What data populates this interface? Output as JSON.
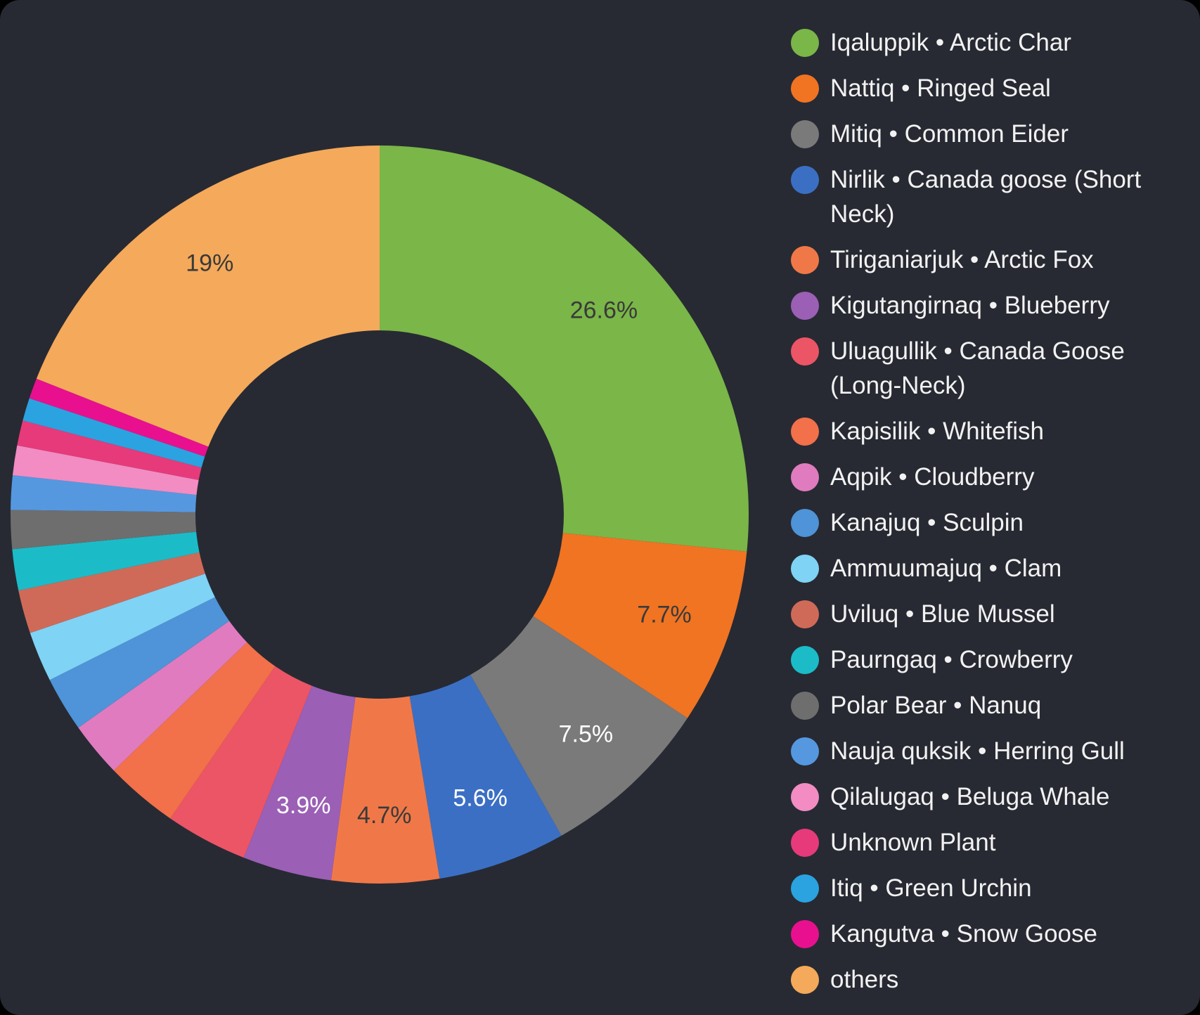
{
  "chart_data": {
    "type": "donut",
    "categories": [
      "Iqaluppik • Arctic Char",
      "Nattiq • Ringed Seal",
      "Mitiq • Common Eider",
      "Nirlik • Canada goose (Short Neck)",
      "Tiriganiarjuk • Arctic Fox",
      "Kigutangirnaq • Blueberry",
      "Uluagullik • Canada Goose (Long-Neck)",
      "Kapisilik • Whitefish",
      "Aqpik • Cloudberry",
      "Kanajuq • Sculpin",
      "Ammuumajuq • Clam",
      "Uviluq • Blue Mussel",
      "Paurngaq • Crowberry",
      "Polar Bear • Nanuq",
      "Nauja quksik • Herring Gull",
      "Qilalugaq • Beluga Whale",
      "Unknown Plant",
      "Itiq • Green Urchin",
      "Kangutva • Snow Goose",
      "others"
    ],
    "values": [
      26.6,
      7.7,
      7.5,
      5.6,
      4.7,
      3.9,
      3.6,
      3.2,
      2.4,
      2.4,
      2.2,
      1.9,
      1.8,
      1.7,
      1.5,
      1.3,
      1.1,
      1.0,
      0.9,
      19
    ],
    "value_labels": [
      "26.6%",
      "7.7%",
      "7.5%",
      "5.6%",
      "4.7%",
      "3.9%",
      null,
      null,
      null,
      null,
      null,
      null,
      null,
      null,
      null,
      null,
      null,
      null,
      null,
      "19%"
    ],
    "colors": [
      "#7ab648",
      "#f07422",
      "#7a7a7a",
      "#3b6fc4",
      "#f07848",
      "#9b5fb5",
      "#ec5566",
      "#f2704a",
      "#e07bbf",
      "#4f93d8",
      "#7fd3f5",
      "#d06a58",
      "#1bbcc8",
      "#6e6e6e",
      "#5598e0",
      "#f28cc3",
      "#e73a7a",
      "#2aa3e0",
      "#e8108f",
      "#f5a95a"
    ],
    "legend": "right"
  }
}
